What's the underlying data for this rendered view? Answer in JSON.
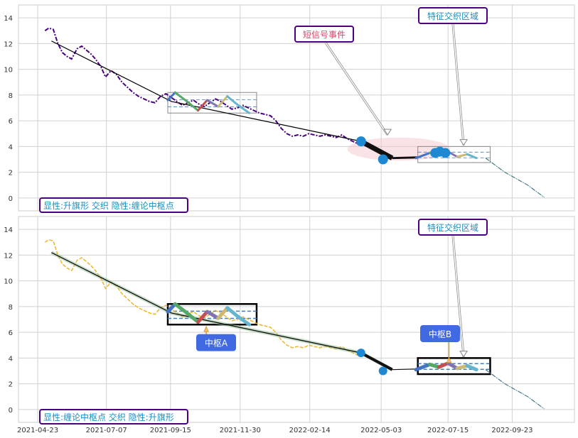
{
  "chart_data": [
    {
      "type": "line",
      "panel": "top",
      "x_axis": "date",
      "ylim": [
        -1,
        15
      ],
      "yticks": [
        0,
        2,
        4,
        6,
        8,
        10,
        12,
        14
      ],
      "grid": true,
      "series": [
        {
          "kind": "price",
          "color": "#4b0082",
          "x": [
            "2021-05-01",
            "2021-05-05",
            "2021-05-10",
            "2021-05-15",
            "2021-05-20",
            "2021-05-25",
            "2021-05-30",
            "2021-06-05",
            "2021-06-10",
            "2021-06-15",
            "2021-06-20",
            "2021-06-25",
            "2021-07-01",
            "2021-07-06",
            "2021-07-12",
            "2021-07-18",
            "2021-07-24",
            "2021-07-30",
            "2021-08-05",
            "2021-08-11",
            "2021-08-17",
            "2021-08-23",
            "2021-08-29",
            "2021-09-04",
            "2021-09-10",
            "2021-09-16",
            "2021-09-22",
            "2021-09-28",
            "2021-10-04",
            "2021-10-10",
            "2021-10-16",
            "2021-10-22",
            "2021-10-28",
            "2021-11-03",
            "2021-11-09",
            "2021-11-15",
            "2021-11-21",
            "2021-11-27",
            "2021-12-03",
            "2021-12-09",
            "2021-12-15",
            "2021-12-21",
            "2021-12-27",
            "2022-01-02",
            "2022-01-08",
            "2022-01-14",
            "2022-01-20",
            "2022-01-26",
            "2022-02-01",
            "2022-02-07",
            "2022-02-13",
            "2022-02-19",
            "2022-02-25",
            "2022-03-03",
            "2022-03-09",
            "2022-03-15",
            "2022-03-21",
            "2022-03-27",
            "2022-04-02",
            "2022-04-08",
            "2022-04-14"
          ],
          "values": [
            13.0,
            13.2,
            13.1,
            12.0,
            11.3,
            11.0,
            10.8,
            11.6,
            11.8,
            11.5,
            11.2,
            10.8,
            10.2,
            9.4,
            9.9,
            9.6,
            9.0,
            8.6,
            8.2,
            7.9,
            7.7,
            7.5,
            7.4,
            7.9,
            8.1,
            7.8,
            7.5,
            7.2,
            7.4,
            7.6,
            7.3,
            7.1,
            7.4,
            7.7,
            7.5,
            7.2,
            6.9,
            7.0,
            7.2,
            7.0,
            6.8,
            6.6,
            6.5,
            6.4,
            6.0,
            5.4,
            5.0,
            4.8,
            4.9,
            4.8,
            5.0,
            4.9,
            4.8,
            4.9,
            4.8,
            4.7,
            4.9,
            4.6,
            4.4,
            4.2,
            4.2
          ]
        },
        {
          "kind": "trend_line",
          "color": "#000000",
          "x": [
            "2021-05-08",
            "2021-09-16",
            "2022-04-11",
            "2022-05-15"
          ],
          "values": [
            12.2,
            7.5,
            4.4,
            3.1
          ]
        },
        {
          "kind": "projection",
          "color": "#000000",
          "x": [
            "2022-08-25",
            "2022-09-15",
            "2022-10-10",
            "2022-10-28"
          ],
          "values": [
            3.1,
            2.0,
            1.0,
            0.05
          ]
        }
      ],
      "zigzag": {
        "x": [
          "2021-09-12",
          "2021-09-20",
          "2021-10-03",
          "2021-10-15",
          "2021-10-25",
          "2021-11-06",
          "2021-11-16",
          "2021-11-28",
          "2021-12-10"
        ],
        "values": [
          7.6,
          8.2,
          7.5,
          6.8,
          7.6,
          7.1,
          7.9,
          7.2,
          6.6
        ],
        "colors": [
          "#4472c4",
          "#55a868",
          "#55a868",
          "#c44e52",
          "#8172b2",
          "#ccb974",
          "#64b5cd",
          "#64b5cd"
        ]
      },
      "zigzag2": {
        "x": [
          "2022-06-10",
          "2022-06-25",
          "2022-07-05",
          "2022-07-15",
          "2022-07-25",
          "2022-08-05",
          "2022-08-15"
        ],
        "values": [
          3.1,
          3.5,
          3.3,
          3.6,
          3.2,
          3.4,
          3.1
        ],
        "colors": [
          "#4472c4",
          "#55a868",
          "#c44e52",
          "#8172b2",
          "#ccb974",
          "#64b5cd"
        ]
      },
      "pivot_box": {
        "x0": "2021-09-12",
        "x1": "2021-12-18",
        "y0": 6.6,
        "y1": 8.2
      },
      "pivot_box2": {
        "x0": "2022-06-12",
        "x1": "2022-08-30",
        "y0": 2.75,
        "y1": 4.0
      },
      "ellipse": {
        "cx": "2022-05-22",
        "cy": 3.8,
        "rx_days": 56,
        "ry": 0.9
      },
      "dots": {
        "x": [
          "2022-04-11",
          "2022-05-05",
          "2022-07-01",
          "2022-07-06",
          "2022-07-12"
        ],
        "values": [
          4.4,
          3.0,
          3.5,
          3.6,
          3.5
        ]
      },
      "annotations": [
        {
          "text": "短信号事件",
          "color": "#d14a6a",
          "target_x": "2022-05-10",
          "target_y": 4.9
        },
        {
          "text": "特征交织区域",
          "color": "#1a8fbf",
          "target_x": "2022-08-01",
          "target_y": 4.1
        }
      ],
      "legend_text": "显性:升旗形 交织 隐性:缠论中枢点"
    },
    {
      "type": "line",
      "panel": "bottom",
      "x_axis": "date",
      "ylim": [
        -1,
        15
      ],
      "yticks": [
        0,
        2,
        4,
        6,
        8,
        10,
        12,
        14
      ],
      "xticks": [
        "2021-04-23",
        "2021-07-07",
        "2021-09-15",
        "2021-11-30",
        "2022-02-14",
        "2022-05-03",
        "2022-07-15",
        "2022-09-23"
      ],
      "grid": true,
      "series": [
        {
          "kind": "price",
          "color": "#f0b429",
          "x": [
            "2021-05-01",
            "2021-05-05",
            "2021-05-10",
            "2021-05-15",
            "2021-05-20",
            "2021-05-25",
            "2021-05-30",
            "2021-06-05",
            "2021-06-10",
            "2021-06-15",
            "2021-06-20",
            "2021-06-25",
            "2021-07-01",
            "2021-07-06",
            "2021-07-12",
            "2021-07-18",
            "2021-07-24",
            "2021-07-30",
            "2021-08-05",
            "2021-08-11",
            "2021-08-17",
            "2021-08-23",
            "2021-08-29",
            "2021-09-04",
            "2021-09-10",
            "2021-09-16",
            "2021-09-22",
            "2021-09-28",
            "2021-10-04",
            "2021-10-10",
            "2021-10-16",
            "2021-10-22",
            "2021-10-28",
            "2021-11-03",
            "2021-11-09",
            "2021-11-15",
            "2021-11-21",
            "2021-11-27",
            "2021-12-03",
            "2021-12-09",
            "2021-12-15",
            "2021-12-21",
            "2021-12-27",
            "2022-01-02",
            "2022-01-08",
            "2022-01-14",
            "2022-01-20",
            "2022-01-26",
            "2022-02-01",
            "2022-02-07",
            "2022-02-13",
            "2022-02-19",
            "2022-02-25",
            "2022-03-03",
            "2022-03-09",
            "2022-03-15",
            "2022-03-21",
            "2022-03-27",
            "2022-04-02",
            "2022-04-08",
            "2022-04-14"
          ],
          "values": [
            13.0,
            13.2,
            13.1,
            12.0,
            11.3,
            11.0,
            10.8,
            11.6,
            11.8,
            11.5,
            11.2,
            10.8,
            10.2,
            9.4,
            9.9,
            9.6,
            9.0,
            8.6,
            8.2,
            7.9,
            7.7,
            7.5,
            7.4,
            7.9,
            8.1,
            7.8,
            7.5,
            7.2,
            7.4,
            7.6,
            7.3,
            7.1,
            7.4,
            7.7,
            7.5,
            7.2,
            6.9,
            7.0,
            7.2,
            7.0,
            6.8,
            6.6,
            6.5,
            6.4,
            6.0,
            5.4,
            5.0,
            4.8,
            4.9,
            4.8,
            5.0,
            4.9,
            4.8,
            4.9,
            4.8,
            4.7,
            4.9,
            4.6,
            4.4,
            4.2,
            4.2
          ]
        },
        {
          "kind": "trend_line",
          "color": "#000000",
          "x": [
            "2021-05-08",
            "2021-09-16",
            "2022-04-11",
            "2022-05-15"
          ],
          "values": [
            12.2,
            7.5,
            4.4,
            3.1
          ]
        },
        {
          "kind": "projection",
          "color": "#000000",
          "x": [
            "2022-08-25",
            "2022-09-15",
            "2022-10-10",
            "2022-10-28"
          ],
          "values": [
            3.1,
            2.0,
            1.0,
            0.05
          ]
        }
      ],
      "zigzag": {
        "x": [
          "2021-09-12",
          "2021-09-20",
          "2021-10-03",
          "2021-10-15",
          "2021-10-25",
          "2021-11-06",
          "2021-11-16",
          "2021-11-28",
          "2021-12-10"
        ],
        "values": [
          7.6,
          8.2,
          7.5,
          6.8,
          7.6,
          7.1,
          7.9,
          7.2,
          6.6
        ],
        "colors": [
          "#4472c4",
          "#55a868",
          "#55a868",
          "#c44e52",
          "#8172b2",
          "#ccb974",
          "#64b5cd",
          "#64b5cd"
        ]
      },
      "zigzag2": {
        "x": [
          "2022-06-10",
          "2022-06-25",
          "2022-07-05",
          "2022-07-15",
          "2022-07-25",
          "2022-08-05",
          "2022-08-15"
        ],
        "values": [
          3.1,
          3.5,
          3.3,
          3.6,
          3.2,
          3.4,
          3.1
        ],
        "colors": [
          "#4472c4",
          "#55a868",
          "#c44e52",
          "#8172b2",
          "#ccb974",
          "#64b5cd"
        ]
      },
      "pivot_box": {
        "x0": "2021-09-12",
        "x1": "2021-12-18",
        "y0": 6.6,
        "y1": 8.2
      },
      "pivot_box2": {
        "x0": "2022-06-12",
        "x1": "2022-08-30",
        "y0": 2.75,
        "y1": 4.0
      },
      "dots": {
        "x": [
          "2022-04-11",
          "2022-05-05"
        ],
        "values": [
          4.4,
          3.0
        ]
      },
      "annotations": [
        {
          "text": "中枢A",
          "color": "#ffffff",
          "bg": "#4169e1",
          "target_x": "2021-10-24",
          "target_y": 6.5
        },
        {
          "text": "中枢B",
          "color": "#ffffff",
          "bg": "#4169e1",
          "target_x": "2022-07-16",
          "target_y": 4.1
        },
        {
          "text": "特征交织区域",
          "color": "#1a8fbf",
          "target_x": "2022-08-01",
          "target_y": 4.1
        }
      ],
      "legend_text": "显性:缠论中枢点 交织 隐性:升旗形"
    }
  ]
}
